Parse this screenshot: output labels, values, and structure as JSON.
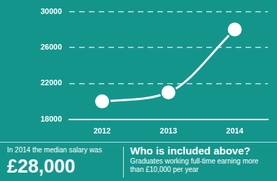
{
  "chart_data": {
    "type": "line",
    "categories": [
      "2012",
      "2013",
      "2014"
    ],
    "values": [
      20000,
      21000,
      28000
    ],
    "color": "#ffffff",
    "ylim": [
      18000,
      30000
    ],
    "yticks": [
      18000,
      22000,
      26000,
      30000
    ],
    "grid": true,
    "marker": "circle",
    "line_style": "smooth",
    "annotations": [
      "In 2014 the median salary was",
      "£28,000",
      "Who is included above?",
      "Graduates working full-time earning more than £10,000 per year"
    ]
  }
}
